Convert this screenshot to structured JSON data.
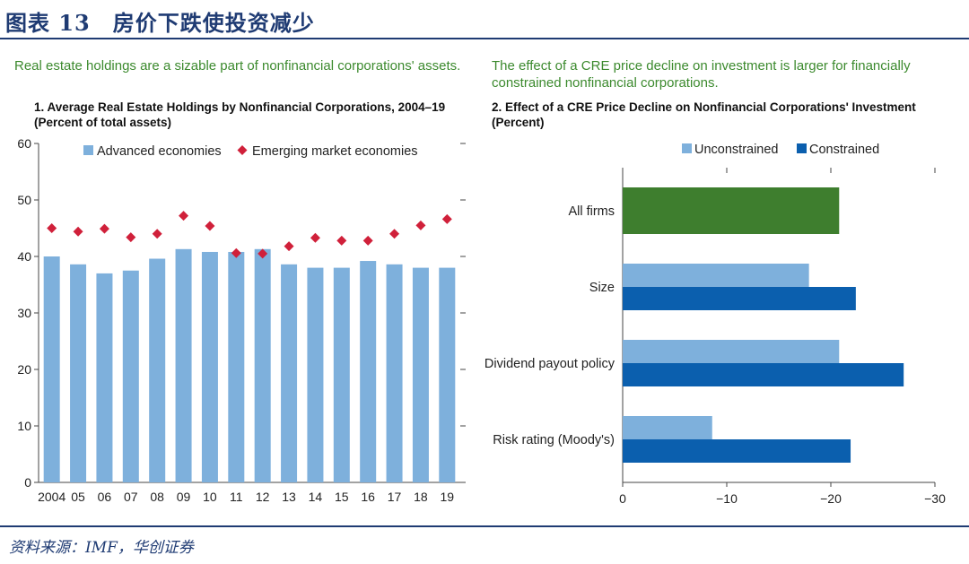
{
  "figure": {
    "title": "图表 13　房价下跌使投资减少",
    "source": "资料来源：IMF，华创证券"
  },
  "colors": {
    "advanced": "#7eb0dc",
    "emerging": "#d0203a",
    "unconstrained": "#7eb0dc",
    "constrained": "#0b5fae",
    "all_firms": "#3e7e2e",
    "header": "#1f3b73",
    "subtitle": "#3c8a2e"
  },
  "panel1": {
    "subtitle": "Real estate holdings are a sizable part of nonfinancial corporations' assets.",
    "title_line1": "1. Average Real Estate Holdings by Nonfinancial Corporations, 2004–19",
    "title_line2": "(Percent of total assets)"
  },
  "panel2": {
    "subtitle": "The effect of a CRE price decline on investment is larger for financially constrained nonfinancial corporations.",
    "title_line1": "2. Effect of a CRE Price Decline on Nonfinancial Corporations' Investment",
    "title_line2": "(Percent)"
  },
  "chart_data": [
    {
      "type": "bar",
      "title": "1. Average Real Estate Holdings by Nonfinancial Corporations, 2004–19",
      "ylabel": "Percent of total assets",
      "ylim": [
        0,
        60
      ],
      "yticks": [
        0,
        10,
        20,
        30,
        40,
        50,
        60
      ],
      "categories": [
        "2004",
        "05",
        "06",
        "07",
        "08",
        "09",
        "10",
        "11",
        "12",
        "13",
        "14",
        "15",
        "16",
        "17",
        "18",
        "19"
      ],
      "series": [
        {
          "name": "Advanced economies",
          "kind": "bar",
          "values": [
            40.0,
            38.6,
            37.0,
            37.5,
            39.6,
            41.3,
            40.8,
            40.8,
            41.3,
            38.6,
            38.0,
            38.0,
            39.2,
            38.6,
            38.0,
            38.0
          ]
        },
        {
          "name": "Emerging market economies",
          "kind": "marker",
          "values": [
            45.0,
            44.4,
            44.9,
            43.4,
            44.0,
            47.2,
            45.4,
            40.6,
            40.5,
            41.8,
            43.3,
            42.8,
            42.8,
            44.0,
            45.5,
            46.6
          ]
        }
      ],
      "legend": "top"
    },
    {
      "type": "bar",
      "orientation": "horizontal",
      "title": "2. Effect of a CRE Price Decline on Nonfinancial Corporations' Investment",
      "xlabel": "Percent",
      "xlim": [
        0,
        -30
      ],
      "xticks": [
        0,
        -10,
        -20,
        -30
      ],
      "xtick_labels": [
        "0",
        "−10",
        "−20",
        "−30"
      ],
      "categories": [
        "All firms",
        "Size",
        "Dividend payout policy",
        "Risk rating (Moody's)"
      ],
      "all_firms_value": -20.8,
      "series": [
        {
          "name": "Unconstrained",
          "values": [
            null,
            -17.9,
            -20.8,
            -8.6
          ]
        },
        {
          "name": "Constrained",
          "values": [
            null,
            -22.4,
            -27.0,
            -21.9
          ]
        }
      ],
      "legend": "top"
    }
  ]
}
